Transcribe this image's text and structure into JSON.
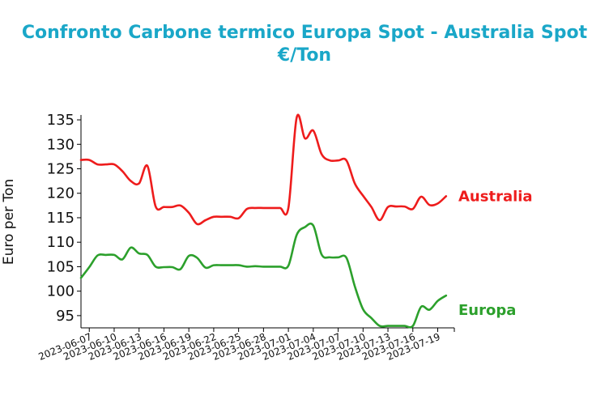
{
  "chart_data": {
    "type": "line",
    "title_line1": "Confronto Carbone termico Europa Spot - Australia Spot",
    "title_line2": "€/Ton",
    "xlabel": "",
    "ylabel": "Euro per Ton",
    "ylim": [
      92.5,
      136
    ],
    "xlim": [
      "2023-06-06",
      "2023-07-21"
    ],
    "grid": false,
    "yticks": [
      95,
      100,
      105,
      110,
      115,
      120,
      125,
      130,
      135
    ],
    "xticks": [
      "2023-06-07",
      "2023-06-10",
      "2023-06-13",
      "2023-06-16",
      "2023-06-19",
      "2023-06-22",
      "2023-06-25",
      "2023-06-28",
      "2023-07-01",
      "2023-07-04",
      "2023-07-07",
      "2023-07-10",
      "2023-07-13",
      "2023-07-16",
      "2023-07-19"
    ],
    "series": [
      {
        "name": "Australia",
        "color": "#ee1c1c",
        "points": [
          [
            "2023-06-06",
            126.8
          ],
          [
            "2023-06-07",
            126.8
          ],
          [
            "2023-06-08",
            125.9
          ],
          [
            "2023-06-09",
            125.9
          ],
          [
            "2023-06-10",
            125.9
          ],
          [
            "2023-06-11",
            124.5
          ],
          [
            "2023-06-12",
            122.5
          ],
          [
            "2023-06-13",
            122.0
          ],
          [
            "2023-06-14",
            125.6
          ],
          [
            "2023-06-15",
            117.3
          ],
          [
            "2023-06-16",
            117.2
          ],
          [
            "2023-06-17",
            117.2
          ],
          [
            "2023-06-18",
            117.5
          ],
          [
            "2023-06-19",
            116.0
          ],
          [
            "2023-06-20",
            113.7
          ],
          [
            "2023-06-21",
            114.5
          ],
          [
            "2023-06-22",
            115.2
          ],
          [
            "2023-06-23",
            115.2
          ],
          [
            "2023-06-24",
            115.2
          ],
          [
            "2023-06-25",
            114.9
          ],
          [
            "2023-06-26",
            116.8
          ],
          [
            "2023-06-27",
            117.0
          ],
          [
            "2023-06-28",
            117.0
          ],
          [
            "2023-06-29",
            117.0
          ],
          [
            "2023-06-30",
            117.0
          ],
          [
            "2023-07-01",
            117.0
          ],
          [
            "2023-07-02",
            135.5
          ],
          [
            "2023-07-03",
            131.2
          ],
          [
            "2023-07-04",
            132.8
          ],
          [
            "2023-07-05",
            128.0
          ],
          [
            "2023-07-06",
            126.7
          ],
          [
            "2023-07-07",
            126.7
          ],
          [
            "2023-07-08",
            126.7
          ],
          [
            "2023-07-09",
            122.0
          ],
          [
            "2023-07-10",
            119.5
          ],
          [
            "2023-07-11",
            117.2
          ],
          [
            "2023-07-12",
            114.5
          ],
          [
            "2023-07-13",
            117.2
          ],
          [
            "2023-07-14",
            117.3
          ],
          [
            "2023-07-15",
            117.3
          ],
          [
            "2023-07-16",
            116.8
          ],
          [
            "2023-07-17",
            119.3
          ],
          [
            "2023-07-18",
            117.6
          ],
          [
            "2023-07-19",
            117.9
          ],
          [
            "2023-07-20",
            119.4
          ]
        ]
      },
      {
        "name": "Europa",
        "color": "#2ca02c",
        "points": [
          [
            "2023-06-06",
            102.7
          ],
          [
            "2023-06-07",
            104.9
          ],
          [
            "2023-06-08",
            107.3
          ],
          [
            "2023-06-09",
            107.4
          ],
          [
            "2023-06-10",
            107.4
          ],
          [
            "2023-06-11",
            106.5
          ],
          [
            "2023-06-12",
            108.9
          ],
          [
            "2023-06-13",
            107.7
          ],
          [
            "2023-06-14",
            107.4
          ],
          [
            "2023-06-15",
            105.0
          ],
          [
            "2023-06-16",
            104.9
          ],
          [
            "2023-06-17",
            104.9
          ],
          [
            "2023-06-18",
            104.5
          ],
          [
            "2023-06-19",
            107.2
          ],
          [
            "2023-06-20",
            106.8
          ],
          [
            "2023-06-21",
            104.8
          ],
          [
            "2023-06-22",
            105.3
          ],
          [
            "2023-06-23",
            105.3
          ],
          [
            "2023-06-24",
            105.3
          ],
          [
            "2023-06-25",
            105.3
          ],
          [
            "2023-06-26",
            105.0
          ],
          [
            "2023-06-27",
            105.1
          ],
          [
            "2023-06-28",
            105.0
          ],
          [
            "2023-06-29",
            105.0
          ],
          [
            "2023-06-30",
            105.0
          ],
          [
            "2023-07-01",
            105.2
          ],
          [
            "2023-07-02",
            111.5
          ],
          [
            "2023-07-03",
            113.1
          ],
          [
            "2023-07-04",
            113.4
          ],
          [
            "2023-07-05",
            107.5
          ],
          [
            "2023-07-06",
            106.9
          ],
          [
            "2023-07-07",
            106.9
          ],
          [
            "2023-07-08",
            106.8
          ],
          [
            "2023-07-09",
            101.0
          ],
          [
            "2023-07-10",
            96.3
          ],
          [
            "2023-07-11",
            94.5
          ],
          [
            "2023-07-12",
            92.9
          ],
          [
            "2023-07-13",
            92.9
          ],
          [
            "2023-07-14",
            92.9
          ],
          [
            "2023-07-15",
            92.9
          ],
          [
            "2023-07-16",
            92.9
          ],
          [
            "2023-07-17",
            96.8
          ],
          [
            "2023-07-18",
            96.2
          ],
          [
            "2023-07-19",
            98.0
          ],
          [
            "2023-07-20",
            99.1
          ]
        ]
      }
    ]
  }
}
